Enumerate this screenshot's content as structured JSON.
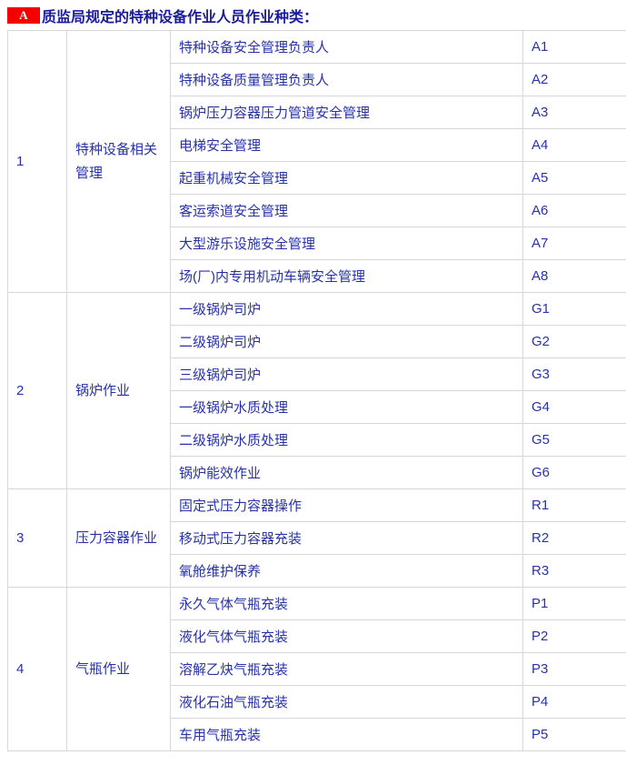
{
  "header": {
    "badge": "A",
    "title": "质监局规定的特种设备作业人员作业种类："
  },
  "colors": {
    "badge_background": "#f40000",
    "badge_text": "#ffffff",
    "title_text": "#1b1b9e",
    "cell_text": "#2832a8",
    "grid_border": "#d7d7d7"
  },
  "table": {
    "groups": [
      {
        "index": "1",
        "category": "特种设备相关管理",
        "items": [
          {
            "name": "特种设备安全管理负责人",
            "code": "A1"
          },
          {
            "name": "特种设备质量管理负责人",
            "code": "A2"
          },
          {
            "name": "锅炉压力容器压力管道安全管理",
            "code": "A3"
          },
          {
            "name": "电梯安全管理",
            "code": "A4"
          },
          {
            "name": "起重机械安全管理",
            "code": "A5"
          },
          {
            "name": "客运索道安全管理",
            "code": "A6"
          },
          {
            "name": "大型游乐设施安全管理",
            "code": "A7"
          },
          {
            "name": "场(厂)内专用机动车辆安全管理",
            "code": "A8"
          }
        ]
      },
      {
        "index": "2",
        "category": "锅炉作业",
        "items": [
          {
            "name": "一级锅炉司炉",
            "code": "G1"
          },
          {
            "name": "二级锅炉司炉",
            "code": "G2"
          },
          {
            "name": "三级锅炉司炉",
            "code": "G3"
          },
          {
            "name": "一级锅炉水质处理",
            "code": "G4"
          },
          {
            "name": "二级锅炉水质处理",
            "code": "G5"
          },
          {
            "name": "锅炉能效作业",
            "code": "G6"
          }
        ]
      },
      {
        "index": "3",
        "category": "压力容器作业",
        "items": [
          {
            "name": "固定式压力容器操作",
            "code": "R1"
          },
          {
            "name": "移动式压力容器充装",
            "code": "R2"
          },
          {
            "name": "氧舱维护保养",
            "code": "R3"
          }
        ]
      },
      {
        "index": "4",
        "category": "气瓶作业",
        "items": [
          {
            "name": "永久气体气瓶充装",
            "code": "P1"
          },
          {
            "name": "液化气体气瓶充装",
            "code": "P2"
          },
          {
            "name": "溶解乙炔气瓶充装",
            "code": "P3"
          },
          {
            "name": "液化石油气瓶充装",
            "code": "P4"
          },
          {
            "name": "车用气瓶充装",
            "code": "P5"
          }
        ]
      }
    ]
  }
}
